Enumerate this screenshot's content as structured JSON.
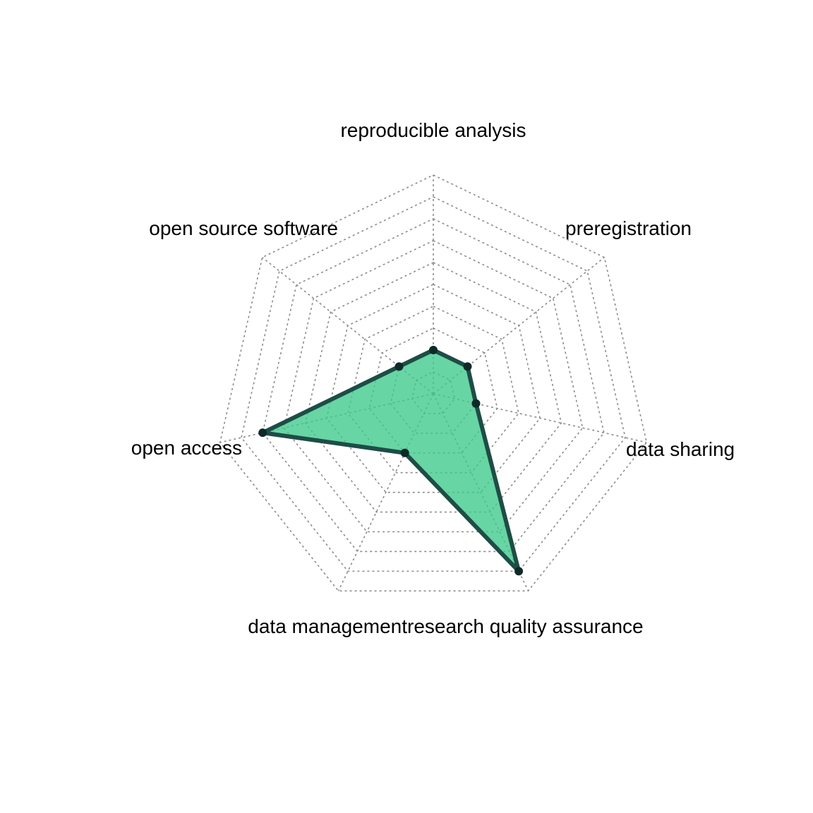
{
  "chart_data": {
    "type": "radar",
    "axes": [
      "reproducible analysis",
      "preregistration",
      "data sharing",
      "research quality assurance",
      "data management",
      "open access",
      "open source software"
    ],
    "series": [
      {
        "values": [
          2,
          2,
          2,
          9,
          3,
          8,
          2
        ],
        "fill_color": "#3cc98a",
        "line_color": "#1e4d46",
        "point_color": "#0e2a28"
      }
    ],
    "range": [
      0,
      10
    ],
    "grid_levels": 10
  }
}
